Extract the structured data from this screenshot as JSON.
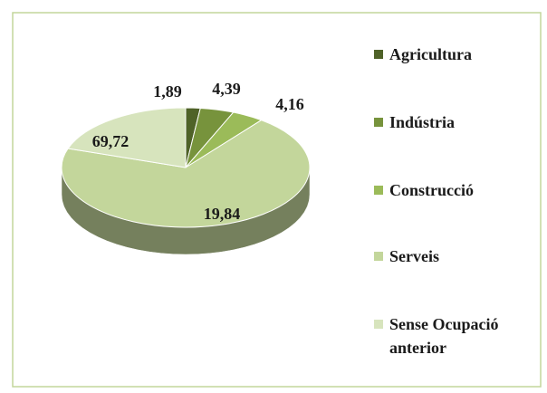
{
  "chart_data": {
    "type": "pie",
    "categories": [
      "Agricultura",
      "Indústria",
      "Construcció",
      "Serveis",
      "Sense Ocupació anterior"
    ],
    "values": [
      1.89,
      4.39,
      4.16,
      69.72,
      19.84
    ],
    "value_labels": [
      "1,89",
      "4,39",
      "4,16",
      "69,72",
      "19,84"
    ],
    "colors": [
      "#4f6228",
      "#77933c",
      "#9bbb59",
      "#c3d69b",
      "#d7e4bd"
    ],
    "legend": "right"
  }
}
